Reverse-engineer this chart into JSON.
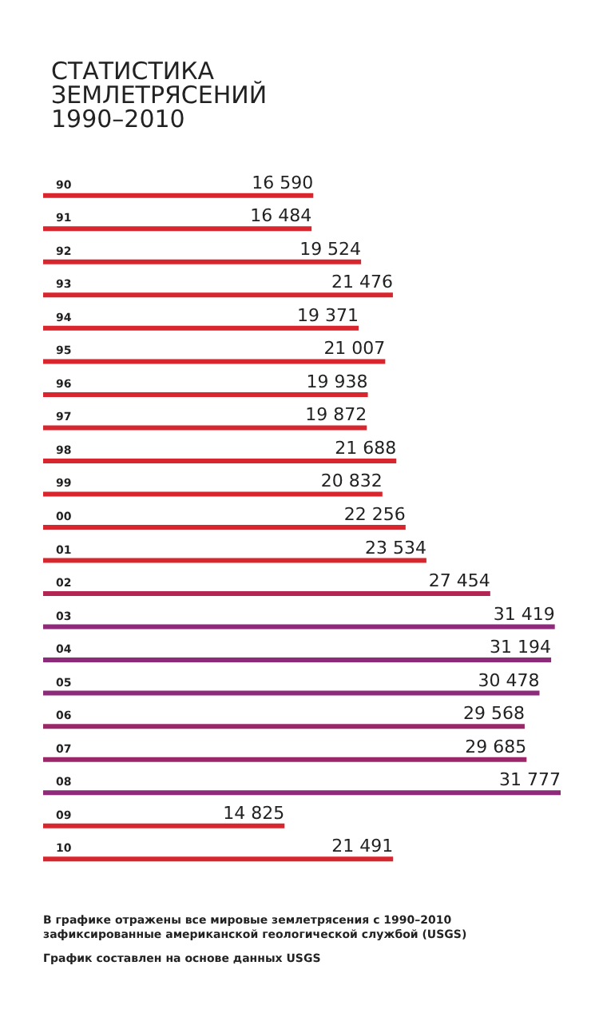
{
  "chart_data": {
    "type": "bar",
    "orientation": "horizontal",
    "title": "СТАТИСТИКА\nЗЕМЛЕТРЯСЕНИЙ\n1990–2010",
    "categories": [
      "90",
      "91",
      "92",
      "93",
      "94",
      "95",
      "96",
      "97",
      "98",
      "99",
      "00",
      "01",
      "02",
      "03",
      "04",
      "05",
      "06",
      "07",
      "08",
      "09",
      "10"
    ],
    "values": [
      16590,
      16484,
      19524,
      21476,
      19371,
      21007,
      19938,
      19872,
      21688,
      20832,
      22256,
      23534,
      27454,
      31419,
      31194,
      30478,
      29568,
      29685,
      31777,
      14825,
      21491
    ],
    "value_labels": [
      "16 590",
      "16 484",
      "19 524",
      "21 476",
      "19 371",
      "21 007",
      "19 938",
      "19 872",
      "21 688",
      "20 832",
      "22 256",
      "23 534",
      "27 454",
      "31 419",
      "31 194",
      "30 478",
      "29 568",
      "29 685",
      "31 777",
      "14 825",
      "21 491"
    ],
    "colors": [
      "#d8262e",
      "#d8262e",
      "#d8262e",
      "#d8262e",
      "#d8262e",
      "#d8262e",
      "#d8262e",
      "#d8262e",
      "#d8262e",
      "#d8262e",
      "#d8262e",
      "#d8262e",
      "#b32552",
      "#8e2a7a",
      "#8e2a7a",
      "#8e2a7a",
      "#9a2868",
      "#9a2868",
      "#8e2a7a",
      "#d8262e",
      "#d8262e"
    ],
    "annotations": [
      "В графике отражены все мировые землетрясения с 1990–2010 зафиксированные американской геологической службой (USGS)",
      "График составлен на основе данных USGS"
    ]
  }
}
